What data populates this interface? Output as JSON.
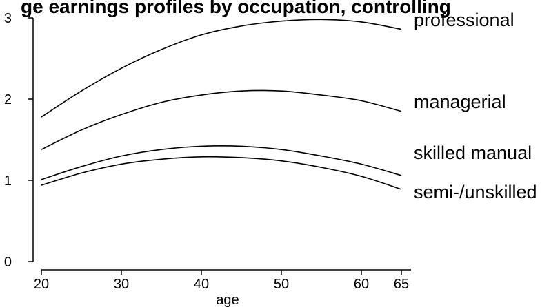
{
  "chart_data": {
    "type": "line",
    "title": "ge earnings profiles by occupation, controlling",
    "xlabel": "age",
    "ylabel": "",
    "xlim": [
      20,
      65
    ],
    "ylim": [
      0,
      3
    ],
    "x_ticks": [
      20,
      30,
      40,
      50,
      60,
      65
    ],
    "y_ticks": [
      0,
      1,
      2,
      3
    ],
    "grid": false,
    "legend": "none",
    "x": [
      20,
      25,
      30,
      35,
      40,
      45,
      50,
      55,
      60,
      65
    ],
    "series": [
      {
        "name": "professional",
        "values": [
          1.78,
          2.1,
          2.38,
          2.61,
          2.79,
          2.9,
          2.96,
          2.98,
          2.95,
          2.86
        ]
      },
      {
        "name": "managerial",
        "values": [
          1.38,
          1.62,
          1.81,
          1.96,
          2.05,
          2.1,
          2.1,
          2.05,
          1.98,
          1.85
        ]
      },
      {
        "name": "skilled manual",
        "values": [
          1.01,
          1.17,
          1.3,
          1.38,
          1.42,
          1.42,
          1.38,
          1.3,
          1.2,
          1.06
        ]
      },
      {
        "name": "semi-/unskilled",
        "values": [
          0.94,
          1.09,
          1.2,
          1.26,
          1.29,
          1.28,
          1.24,
          1.16,
          1.05,
          0.89
        ]
      }
    ]
  }
}
